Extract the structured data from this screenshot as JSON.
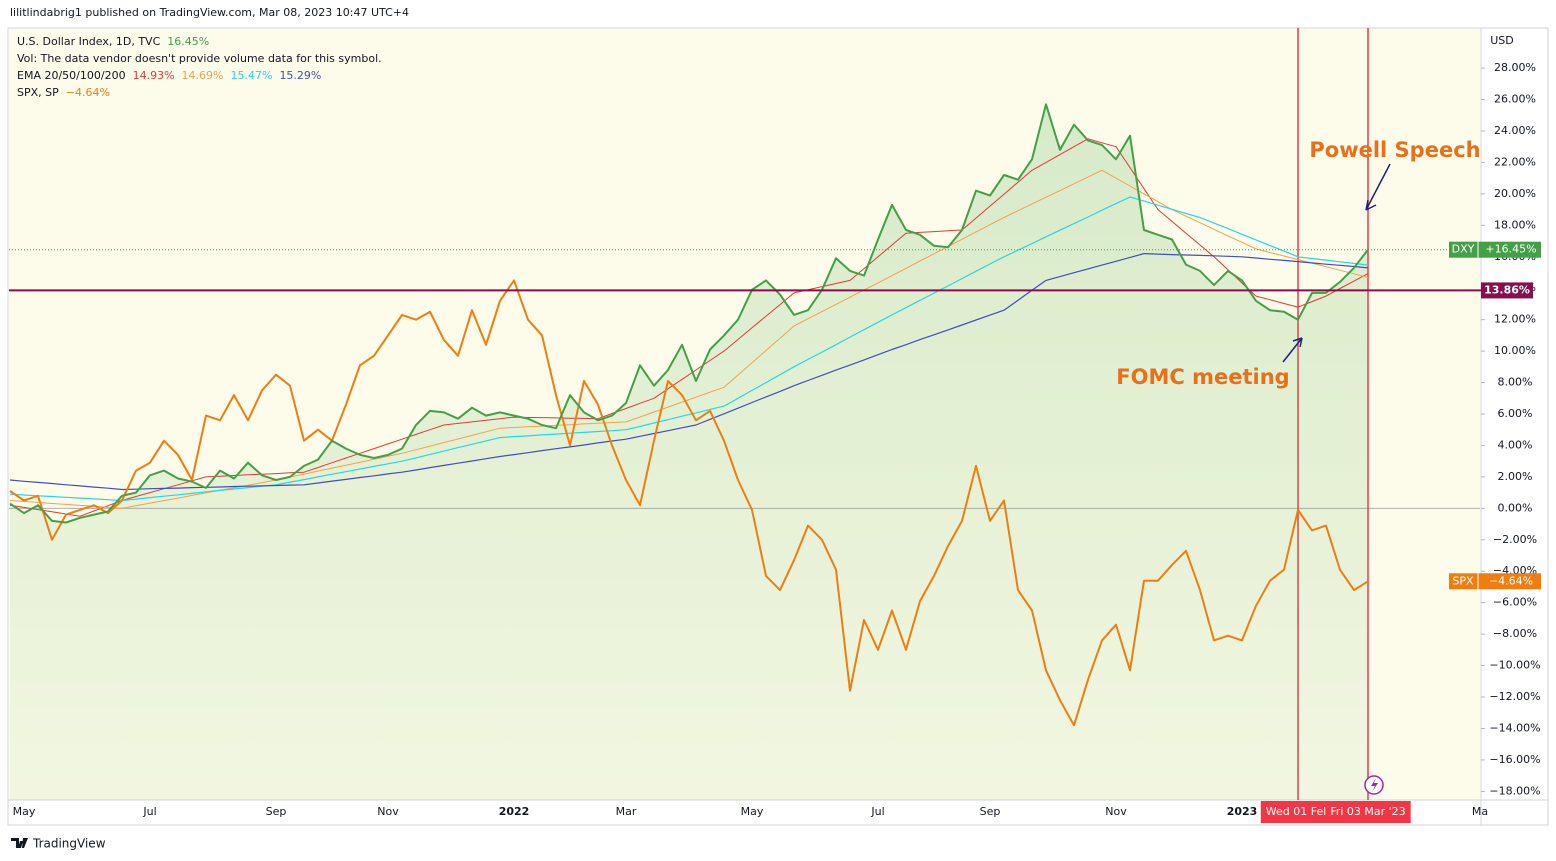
{
  "header": "lilitlindabrig1 published on TradingView.com, Mar 08, 2023 10:47 UTC+4",
  "footer": "TradingView",
  "chart_data": {
    "type": "line",
    "y_axis_label": "USD",
    "volume_note": "Vol: The data vendor doesn't provide volume data for this symbol.",
    "ema_legend": "EMA 20/50/100/200",
    "ylim": [
      -18.55,
      30.55
    ],
    "yticks": [
      {
        "value": -18,
        "label": "−18.00%"
      },
      {
        "value": -16,
        "label": "−16.00%"
      },
      {
        "value": -14,
        "label": "−14.00%"
      },
      {
        "value": -12,
        "label": "−12.00%"
      },
      {
        "value": -10,
        "label": "−10.00%"
      },
      {
        "value": -8,
        "label": "−8.00%"
      },
      {
        "value": -6,
        "label": "−6.00%"
      },
      {
        "value": -4,
        "label": "−4.00%"
      },
      {
        "value": -2,
        "label": "−2.00%"
      },
      {
        "value": 0,
        "label": "0.00%"
      },
      {
        "value": 2,
        "label": "2.00%"
      },
      {
        "value": 4,
        "label": "4.00%"
      },
      {
        "value": 6,
        "label": "6.00%"
      },
      {
        "value": 8,
        "label": "8.00%"
      },
      {
        "value": 10,
        "label": "10.00%"
      },
      {
        "value": 12,
        "label": "12.00%"
      },
      {
        "value": 14,
        "label": "14.00%"
      },
      {
        "value": 16,
        "label": "16.00%"
      },
      {
        "value": 18,
        "label": "18.00%"
      },
      {
        "value": 20,
        "label": "20.00%"
      },
      {
        "value": 22,
        "label": "22.00%"
      },
      {
        "value": 24,
        "label": "24.00%"
      },
      {
        "value": 26,
        "label": "26.00%"
      },
      {
        "value": 28,
        "label": "28.00%"
      }
    ],
    "grid": false,
    "marker_color": "#f23645",
    "categories": [
      null,
      "May",
      null,
      null,
      null,
      null,
      null,
      null,
      null,
      null,
      "Jul",
      null,
      null,
      null,
      null,
      null,
      null,
      null,
      null,
      "Sep",
      null,
      null,
      null,
      null,
      null,
      null,
      null,
      "Nov",
      null,
      null,
      null,
      null,
      null,
      null,
      null,
      null,
      "2022",
      null,
      null,
      null,
      null,
      null,
      null,
      null,
      "Mar",
      null,
      null,
      null,
      null,
      null,
      null,
      null,
      null,
      "May",
      null,
      null,
      null,
      null,
      null,
      null,
      null,
      null,
      "Jul",
      null,
      null,
      null,
      null,
      null,
      null,
      null,
      "Sep",
      null,
      null,
      null,
      null,
      null,
      null,
      null,
      null,
      "Nov",
      null,
      null,
      null,
      null,
      null,
      null,
      null,
      null,
      "2023",
      null,
      null,
      null,
      {
        "label": "Wed 01 Feb",
        "marker": true
      },
      null,
      null,
      null,
      null,
      {
        "label": "Fri 03 Mar '23",
        "marker": true
      },
      null,
      null,
      null,
      null,
      null,
      null,
      null,
      "Ma"
    ],
    "hline": {
      "value": 13.86,
      "label": "13.86%",
      "color": "#880e4f"
    },
    "series": [
      {
        "name": "U.S. Dollar Index, 1D, TVC",
        "legend_value": "16.45%",
        "tag": "DXY",
        "tag_value": "+16.45%",
        "color": "#43a047",
        "line_width": 2,
        "fill": true,
        "values": [
          0.3,
          -0.3,
          0.2,
          -0.8,
          -0.9,
          -0.6,
          -0.4,
          -0.2,
          0.8,
          1.0,
          2.1,
          2.4,
          1.9,
          1.7,
          1.3,
          2.4,
          1.9,
          2.9,
          2.1,
          1.8,
          2.0,
          2.7,
          3.1,
          4.3,
          3.8,
          3.4,
          3.2,
          3.4,
          3.8,
          5.3,
          6.2,
          6.1,
          5.7,
          6.4,
          5.9,
          6.1,
          5.9,
          5.7,
          5.3,
          5.1,
          7.2,
          6.1,
          5.6,
          5.9,
          6.7,
          9.1,
          7.8,
          8.8,
          10.4,
          8.1,
          10.1,
          11.0,
          12.0,
          13.9,
          14.5,
          13.6,
          12.3,
          12.6,
          13.9,
          15.9,
          15.1,
          14.8,
          17.1,
          19.3,
          17.7,
          17.4,
          16.7,
          16.6,
          17.7,
          20.2,
          19.9,
          21.2,
          20.9,
          22.2,
          25.7,
          22.8,
          24.4,
          23.4,
          23.1,
          22.2,
          23.7,
          17.7,
          17.4,
          17.1,
          15.5,
          15.1,
          14.2,
          15.1,
          14.5,
          13.2,
          12.6,
          12.5,
          12.0,
          13.7,
          13.7,
          14.4,
          15.3,
          16.45,
          null,
          null,
          null,
          null,
          null,
          null,
          null,
          null
        ]
      },
      {
        "legend_value": "14.93%",
        "color": "#e53935",
        "line_width": 1,
        "values": [
          0.2,
          0.06,
          -0.08,
          -0.22,
          -0.36,
          -0.5,
          -0.17,
          0.17,
          0.5,
          0.75,
          1.0,
          1.25,
          1.5,
          1.75,
          2.0,
          2.04,
          2.09,
          2.13,
          2.17,
          2.21,
          2.26,
          2.3,
          2.6,
          2.9,
          3.2,
          3.5,
          3.8,
          4.1,
          4.4,
          4.7,
          5.0,
          5.3,
          5.4,
          5.5,
          5.6,
          5.7,
          5.8,
          5.78,
          5.77,
          5.75,
          5.73,
          5.72,
          5.7,
          6.03,
          6.35,
          6.68,
          7.0,
          7.6,
          8.2,
          8.8,
          9.4,
          10.0,
          10.74,
          11.48,
          12.22,
          12.96,
          13.7,
          13.9,
          14.1,
          14.3,
          14.5,
          15.25,
          16.0,
          16.75,
          17.5,
          17.55,
          17.6,
          17.65,
          17.7,
          18.46,
          19.22,
          19.98,
          20.74,
          21.5,
          22.0,
          22.5,
          23.0,
          23.5,
          23.25,
          23.0,
          21.67,
          20.33,
          19.0,
          18.25,
          17.5,
          16.75,
          16.0,
          15.17,
          14.33,
          13.5,
          13.27,
          13.03,
          12.8,
          13.15,
          13.5,
          13.98,
          14.45,
          14.93,
          null,
          null,
          null,
          null,
          null,
          null,
          null,
          null
        ]
      },
      {
        "legend_value": "14.69%",
        "color": "#f6a04d",
        "line_width": 1,
        "values": [
          0.5,
          0.44,
          0.38,
          0.31,
          0.25,
          0.19,
          0.13,
          0.06,
          0.0,
          0.16,
          0.33,
          0.49,
          0.65,
          0.82,
          0.98,
          1.15,
          1.31,
          1.47,
          1.64,
          1.8,
          1.99,
          2.18,
          2.37,
          2.56,
          2.74,
          2.93,
          3.12,
          3.31,
          3.5,
          3.73,
          3.96,
          4.19,
          4.41,
          4.64,
          4.87,
          5.1,
          5.14,
          5.19,
          5.23,
          5.28,
          5.32,
          5.37,
          5.41,
          5.46,
          5.5,
          5.81,
          6.13,
          6.44,
          6.76,
          7.07,
          7.39,
          7.7,
          8.48,
          9.26,
          10.04,
          10.82,
          11.6,
          12.06,
          12.51,
          12.97,
          13.43,
          13.89,
          14.34,
          14.8,
          15.26,
          15.73,
          16.19,
          16.65,
          17.11,
          17.58,
          18.04,
          18.5,
          18.93,
          19.36,
          19.79,
          20.21,
          20.64,
          21.07,
          21.5,
          21.0,
          20.5,
          20.0,
          19.5,
          19.0,
          18.58,
          18.17,
          17.75,
          17.33,
          16.92,
          16.5,
          16.27,
          16.05,
          15.82,
          15.6,
          15.37,
          15.14,
          14.92,
          14.69,
          null,
          null,
          null,
          null,
          null,
          null,
          null,
          null
        ]
      },
      {
        "legend_value": "15.47%",
        "color": "#26d7e3",
        "line_width": 1.2,
        "values": [
          0.9,
          0.85,
          0.8,
          0.75,
          0.7,
          0.65,
          0.6,
          0.55,
          0.5,
          0.59,
          0.68,
          0.77,
          0.86,
          0.95,
          1.05,
          1.14,
          1.23,
          1.32,
          1.41,
          1.5,
          1.67,
          1.83,
          2.0,
          2.17,
          2.33,
          2.5,
          2.67,
          2.83,
          3.0,
          3.21,
          3.43,
          3.64,
          3.86,
          4.07,
          4.29,
          4.5,
          4.56,
          4.61,
          4.67,
          4.72,
          4.78,
          4.83,
          4.89,
          4.94,
          5.0,
          5.21,
          5.43,
          5.64,
          5.86,
          6.07,
          6.29,
          6.5,
          7.0,
          7.5,
          8.0,
          8.5,
          9.0,
          9.47,
          9.94,
          10.41,
          10.89,
          11.36,
          11.83,
          12.3,
          12.76,
          13.23,
          13.69,
          14.15,
          14.61,
          15.08,
          15.54,
          16.0,
          16.42,
          16.84,
          17.27,
          17.69,
          18.11,
          18.53,
          18.96,
          19.38,
          19.8,
          19.54,
          19.28,
          19.02,
          18.76,
          18.5,
          18.14,
          17.79,
          17.43,
          17.07,
          16.71,
          16.36,
          16.0,
          15.89,
          15.79,
          15.68,
          15.58,
          15.47,
          null,
          null,
          null,
          null,
          null,
          null,
          null,
          null
        ]
      },
      {
        "legend_value": "15.29%",
        "color": "#3f4fbf",
        "line_width": 1.2,
        "values": [
          1.8,
          1.72,
          1.65,
          1.58,
          1.5,
          1.43,
          1.35,
          1.28,
          1.2,
          1.22,
          1.25,
          1.27,
          1.29,
          1.32,
          1.34,
          1.36,
          1.39,
          1.41,
          1.43,
          1.45,
          1.48,
          1.5,
          1.61,
          1.73,
          1.84,
          1.96,
          2.07,
          2.19,
          2.3,
          2.44,
          2.59,
          2.73,
          2.87,
          3.01,
          3.16,
          3.3,
          3.42,
          3.54,
          3.67,
          3.79,
          3.91,
          4.03,
          4.16,
          4.28,
          4.4,
          4.58,
          4.76,
          4.94,
          5.12,
          5.3,
          5.66,
          6.01,
          6.37,
          6.73,
          7.09,
          7.44,
          7.8,
          8.13,
          8.46,
          8.79,
          9.11,
          9.44,
          9.77,
          10.1,
          10.41,
          10.73,
          11.04,
          11.35,
          11.66,
          11.98,
          12.29,
          12.6,
          13.23,
          13.87,
          14.5,
          14.74,
          14.99,
          15.23,
          15.47,
          15.71,
          15.96,
          16.2,
          16.17,
          16.14,
          16.11,
          16.09,
          16.06,
          16.03,
          16.0,
          15.92,
          15.84,
          15.77,
          15.69,
          15.61,
          15.53,
          15.46,
          15.38,
          15.29,
          null,
          null,
          null,
          null,
          null,
          null,
          null,
          null
        ]
      },
      {
        "name": "SPX, SP",
        "legend_value": "−4.64%",
        "tag": "SPX",
        "tag_value": "−4.64%",
        "color": "#ef7d10",
        "line_width": 2,
        "values": [
          1.1,
          0.5,
          0.8,
          -2.0,
          -0.4,
          -0.1,
          0.2,
          -0.3,
          0.5,
          2.4,
          2.9,
          4.3,
          3.4,
          1.8,
          5.9,
          5.6,
          7.2,
          5.6,
          7.5,
          8.5,
          7.8,
          4.3,
          5.0,
          4.3,
          6.6,
          9.1,
          9.7,
          11.0,
          12.3,
          12.0,
          12.5,
          10.7,
          9.7,
          12.6,
          10.4,
          13.2,
          14.5,
          12.0,
          11.0,
          7.2,
          4.0,
          8.1,
          6.6,
          4.0,
          1.8,
          0.2,
          4.3,
          8.1,
          7.2,
          5.6,
          6.2,
          4.3,
          1.8,
          -0.1,
          -4.3,
          -5.2,
          -3.3,
          -1.1,
          -2.0,
          -3.9,
          -11.6,
          -7.1,
          -9.0,
          -6.5,
          -9.0,
          -5.9,
          -4.3,
          -2.4,
          -0.8,
          2.7,
          -0.8,
          0.5,
          -5.2,
          -6.5,
          -10.3,
          -12.2,
          -13.8,
          -10.9,
          -8.4,
          -7.4,
          -10.3,
          -4.6,
          -4.6,
          -3.6,
          -2.7,
          -5.2,
          -8.4,
          -8.1,
          -8.4,
          -6.2,
          -4.6,
          -3.9,
          -0.1,
          -1.4,
          -1.1,
          -3.9,
          -5.2,
          -4.64,
          null,
          null,
          null,
          null,
          null,
          null,
          null,
          null
        ]
      }
    ],
    "annotations": [
      {
        "text": "Powell Speech",
        "color": "#e8701a"
      },
      {
        "text": "FOMC meeting",
        "color": "#e8701a"
      }
    ]
  }
}
